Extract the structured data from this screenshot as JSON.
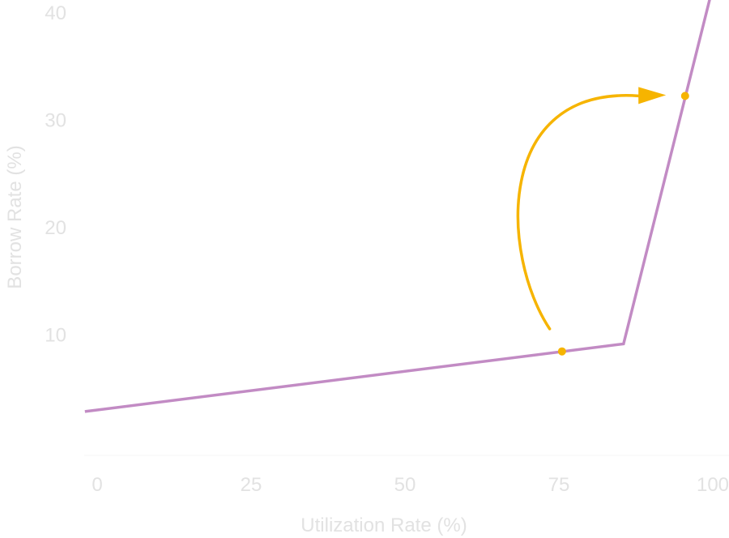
{
  "chart_data": {
    "type": "line",
    "xlabel": "Utilization Rate (%)",
    "ylabel": "Borrow Rate (%)",
    "xlim": [
      0,
      100
    ],
    "ylim": [
      0,
      40
    ],
    "x_ticks": [
      "0",
      "25",
      "50",
      "75",
      "100"
    ],
    "y_ticks": [
      "10",
      "20",
      "30",
      "40"
    ],
    "grid": false,
    "series": [
      {
        "color": "#c28bc4",
        "points": [
          [
            -2,
            2.8
          ],
          [
            85.5,
            9.1
          ],
          [
            99.5,
            41.2
          ]
        ]
      }
    ],
    "markers": [
      {
        "x": 75.5,
        "y": 8.4,
        "color": "#f6b400"
      },
      {
        "x": 95.5,
        "y": 32.2,
        "color": "#f6b400"
      }
    ],
    "annotation": {
      "type": "curved-arrow",
      "from": [
        73.5,
        10.5
      ],
      "to": [
        94.5,
        32.2
      ],
      "color": "#f6b400"
    }
  }
}
